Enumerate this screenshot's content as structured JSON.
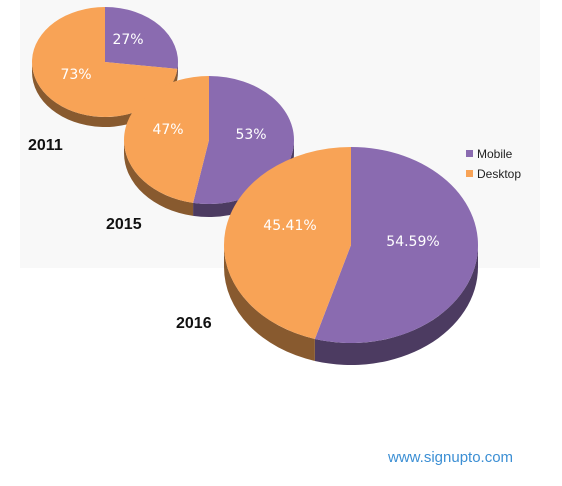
{
  "chart_data": {
    "type": "pie",
    "categories": [
      "Mobile",
      "Desktop"
    ],
    "colors": {
      "Mobile": "#8a6bb0",
      "Desktop": "#f8a356"
    },
    "pies": [
      {
        "label": "2011",
        "values": [
          27,
          73
        ],
        "value_labels": [
          "27%",
          "73%"
        ]
      },
      {
        "label": "2015",
        "values": [
          53,
          47
        ],
        "value_labels": [
          "53%",
          "47%"
        ]
      },
      {
        "label": "2016",
        "values": [
          54.59,
          45.41
        ],
        "value_labels": [
          "54.59%",
          "45.41%"
        ]
      }
    ],
    "legend": {
      "position": "right",
      "entries": [
        {
          "name": "Mobile",
          "color": "#8a6bb0"
        },
        {
          "name": "Desktop",
          "color": "#f8a356"
        }
      ]
    }
  },
  "footer": {
    "link_text": "www.signupto.com",
    "link_color": "#3c8fd4"
  }
}
